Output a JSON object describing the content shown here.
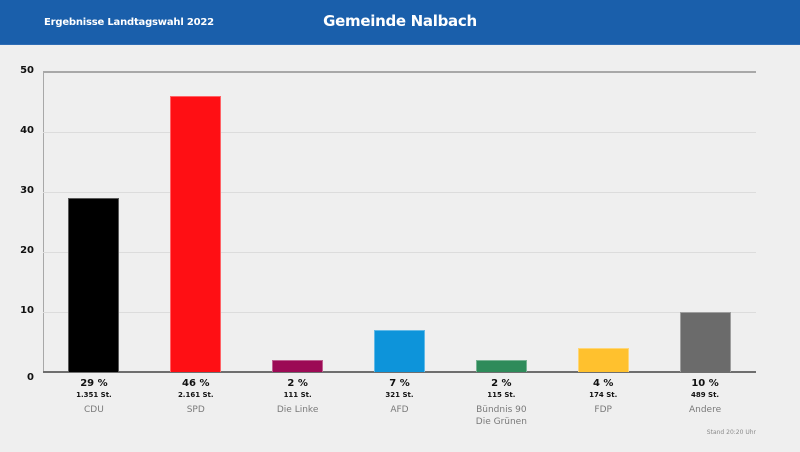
{
  "header": {
    "subtitle": "Ergebnisse Landtagswahl 2022",
    "title": "Gemeinde Nalbach"
  },
  "footer": {
    "timestamp": "Stand 20:20 Uhr"
  },
  "colors": {
    "header_bg": "#1a5fab",
    "background": "#efefef"
  },
  "chart_data": {
    "type": "bar",
    "title": "Gemeinde Nalbach",
    "subtitle": "Ergebnisse Landtagswahl 2022",
    "xlabel": "",
    "ylabel": "",
    "ylim": [
      0,
      50
    ],
    "yticks": [
      0,
      10,
      20,
      30,
      40,
      50
    ],
    "grid": true,
    "legend": "none",
    "categories": [
      "CDU",
      "SPD",
      "Die Linke",
      "AFD",
      "Bündnis 90\nDie Grünen",
      "FDP",
      "Andere"
    ],
    "values": [
      29,
      46,
      2,
      7,
      2,
      4,
      10
    ],
    "percent_labels": [
      "29 %",
      "46 %",
      "2 %",
      "7 %",
      "2 %",
      "4 %",
      "10 %"
    ],
    "vote_labels": [
      "1.351 St.",
      "2.161 St.",
      "111 St.",
      "321 St.",
      "115 St.",
      "174 St.",
      "489 St."
    ],
    "votes": [
      1351,
      2161,
      111,
      321,
      115,
      174,
      489
    ],
    "colors": [
      "#000000",
      "#ff0f14",
      "#9c0a55",
      "#0d94da",
      "#2e8b5a",
      "#ffc12e",
      "#6b6b6b"
    ],
    "annotation": "Stand 20:20 Uhr"
  }
}
